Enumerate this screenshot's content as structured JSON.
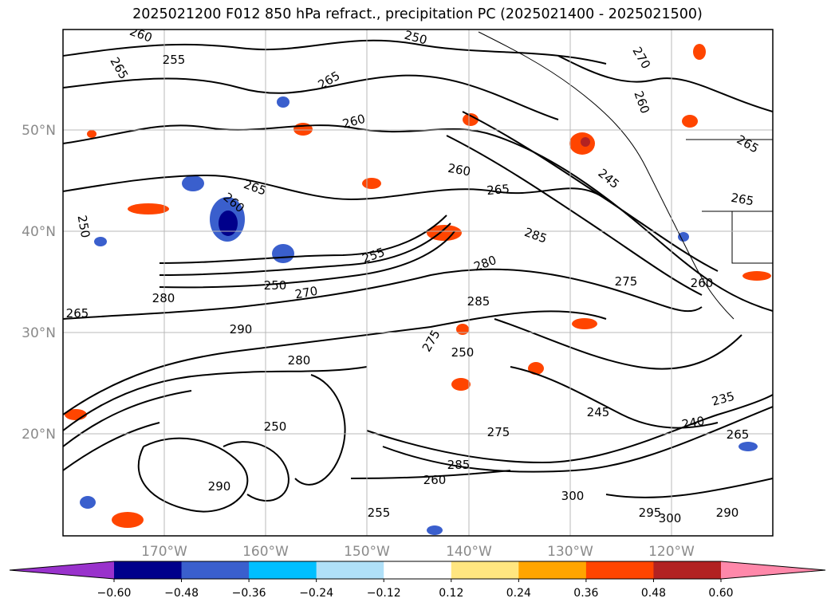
{
  "title": "2025021200 F012 850 hPa refract., precipitation PC (2025021400 - 2025021500)",
  "map": {
    "latitude_labels": [
      "50°N",
      "40°N",
      "30°N",
      "20°N"
    ],
    "longitude_labels": [
      "170°W",
      "160°W",
      "150°W",
      "140°W",
      "130°W",
      "120°W"
    ],
    "grid": true,
    "contour_labels": [
      "260",
      "255",
      "265",
      "250",
      "265",
      "265",
      "260",
      "270",
      "260",
      "265",
      "260",
      "245",
      "265",
      "260",
      "265",
      "260",
      "285",
      "255",
      "280",
      "275",
      "250",
      "270",
      "280",
      "265",
      "290",
      "285",
      "250",
      "275",
      "280",
      "245",
      "235",
      "275",
      "240",
      "265",
      "300",
      "290",
      "300",
      "295",
      "285",
      "260",
      "290",
      "255",
      "250",
      "250"
    ]
  },
  "colorbar": {
    "ticks": [
      "−0.60",
      "−0.48",
      "−0.36",
      "−0.24",
      "−0.12",
      "0.12",
      "0.24",
      "0.36",
      "0.48",
      "0.60"
    ],
    "colors": [
      "#9932cc",
      "#00008b",
      "#3a5fcd",
      "#00bfff",
      "#b0e0f8",
      "#ffffff",
      "#ffe680",
      "#ffa500",
      "#ff4500",
      "#b22222",
      "#ff88aa"
    ]
  }
}
